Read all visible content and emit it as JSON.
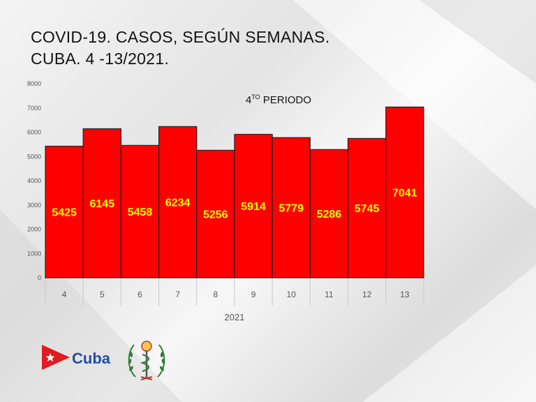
{
  "slide": {
    "title_line1": "COVID-19. CASOS, SEGÚN SEMANAS.",
    "title_line2": "CUBA. 4 -13/2021."
  },
  "logo": {
    "text": "Cuba",
    "flag_red": "#e01b22",
    "text_color": "#1f4fa8"
  },
  "chart_data": {
    "type": "bar",
    "categories": [
      "4",
      "5",
      "6",
      "7",
      "8",
      "9",
      "10",
      "11",
      "12",
      "13"
    ],
    "values": [
      5425,
      6145,
      5458,
      6234,
      5256,
      5914,
      5779,
      5286,
      5745,
      7041
    ],
    "xlabel": "2021",
    "ylabel": "",
    "ylim": [
      0,
      8000
    ],
    "yticks": [
      0,
      1000,
      2000,
      3000,
      4000,
      5000,
      6000,
      7000,
      8000
    ],
    "annotation": {
      "main": "4",
      "sup": "TO",
      "rest": " PERIODO"
    },
    "bar_color": "#ff0000",
    "label_color": "#ffff00",
    "grid": false,
    "legend": "none"
  }
}
